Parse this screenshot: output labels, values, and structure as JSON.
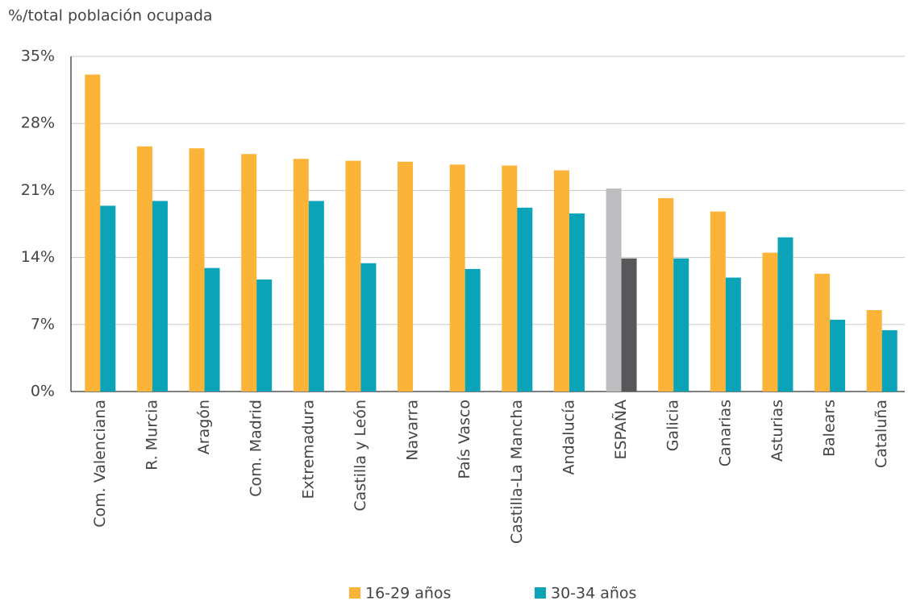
{
  "chart_data": {
    "type": "bar",
    "y_axis_label": "%/total población ocupada",
    "categories": [
      "Com. Valenciana",
      "R. Murcia",
      "Aragón",
      "Com. Madrid",
      "Extremadura",
      "Castilla y León",
      "Navarra",
      "País Vasco",
      "Castilla-La Mancha",
      "Andalucía",
      "ESPAÑA",
      "Galicia",
      "Canarias",
      "Asturias",
      "Balears",
      "Cataluña"
    ],
    "series": [
      {
        "name": "16-29 años",
        "color": "#fbb437",
        "colors": [
          "#fbb437",
          "#fbb437",
          "#fbb437",
          "#fbb437",
          "#fbb437",
          "#fbb437",
          "#fbb437",
          "#fbb437",
          "#fbb437",
          "#fbb437",
          "#bdbdc0",
          "#fbb437",
          "#fbb437",
          "#fbb437",
          "#fbb437",
          "#fbb437"
        ],
        "values": [
          33.1,
          25.6,
          25.4,
          24.8,
          24.3,
          24.1,
          24.0,
          23.7,
          23.6,
          23.1,
          21.2,
          20.2,
          18.8,
          14.5,
          12.3,
          8.5
        ]
      },
      {
        "name": "30-34 años",
        "color": "#0aa3b8",
        "colors": [
          "#0aa3b8",
          "#0aa3b8",
          "#0aa3b8",
          "#0aa3b8",
          "#0aa3b8",
          "#0aa3b8",
          "#0aa3b8",
          "#0aa3b8",
          "#0aa3b8",
          "#0aa3b8",
          "#58585a",
          "#0aa3b8",
          "#0aa3b8",
          "#0aa3b8",
          "#0aa3b8",
          "#0aa3b8"
        ],
        "values": [
          19.4,
          19.9,
          12.9,
          11.7,
          19.9,
          13.4,
          null,
          12.8,
          19.2,
          18.6,
          13.9,
          13.9,
          11.9,
          16.1,
          7.5,
          6.4
        ]
      }
    ],
    "ylim": [
      0,
      35
    ],
    "yticks": [
      {
        "value": 0,
        "label": "0%"
      },
      {
        "value": 7,
        "label": "7%"
      },
      {
        "value": 14,
        "label": "14%"
      },
      {
        "value": 21,
        "label": "21%"
      },
      {
        "value": 28,
        "label": "28%"
      },
      {
        "value": 35,
        "label": "35%"
      }
    ],
    "grid": true,
    "legend": "bottom"
  }
}
